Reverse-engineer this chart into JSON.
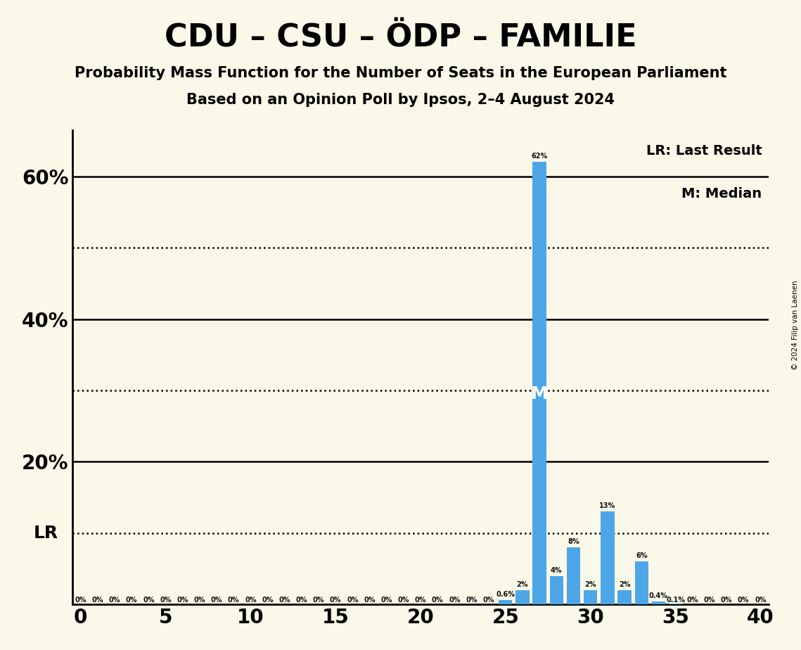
{
  "title": "CDU – CSU – ÖDP – FAMILIE",
  "subtitle1": "Probability Mass Function for the Number of Seats in the European Parliament",
  "subtitle2": "Based on an Opinion Poll by Ipsos, 2–4 August 2024",
  "copyright": "© 2024 Filip van Laenen",
  "background_color": "#faf8e8",
  "bar_color": "#4da6e8",
  "xlim": [
    -0.5,
    40.5
  ],
  "ylim": [
    0,
    0.665
  ],
  "xticks": [
    0,
    5,
    10,
    15,
    20,
    25,
    30,
    35,
    40
  ],
  "solid_hlines": [
    0.2,
    0.4,
    0.6
  ],
  "dotted_hlines": [
    0.1,
    0.3,
    0.5
  ],
  "last_result_seat": 27,
  "median_seat": 27,
  "lr_label": "LR",
  "median_label": "M",
  "pmf": {
    "0": 0.0,
    "1": 0.0,
    "2": 0.0,
    "3": 0.0,
    "4": 0.0,
    "5": 0.0,
    "6": 0.0,
    "7": 0.0,
    "8": 0.0,
    "9": 0.0,
    "10": 0.0,
    "11": 0.0,
    "12": 0.0,
    "13": 0.0,
    "14": 0.0,
    "15": 0.0,
    "16": 0.0,
    "17": 0.0,
    "18": 0.0,
    "19": 0.0,
    "20": 0.0,
    "21": 0.0,
    "22": 0.0,
    "23": 0.0,
    "24": 0.0,
    "25": 0.006,
    "26": 0.02,
    "27": 0.62,
    "28": 0.04,
    "29": 0.08,
    "30": 0.02,
    "31": 0.13,
    "32": 0.02,
    "33": 0.06,
    "34": 0.004,
    "35": 0.001,
    "36": 0.0,
    "37": 0.0,
    "38": 0.0,
    "39": 0.0,
    "40": 0.0
  },
  "bar_labels": {
    "0": "0%",
    "1": "0%",
    "2": "0%",
    "3": "0%",
    "4": "0%",
    "5": "0%",
    "6": "0%",
    "7": "0%",
    "8": "0%",
    "9": "0%",
    "10": "0%",
    "11": "0%",
    "12": "0%",
    "13": "0%",
    "14": "0%",
    "15": "0%",
    "16": "0%",
    "17": "0%",
    "18": "0%",
    "19": "0%",
    "20": "0%",
    "21": "0%",
    "22": "0%",
    "23": "0%",
    "24": "0%",
    "25": "0.6%",
    "26": "2%",
    "27": "62%",
    "28": "4%",
    "29": "8%",
    "30": "2%",
    "31": "13%",
    "32": "2%",
    "33": "6%",
    "34": "0.4%",
    "35": "0.1%",
    "36": "0%",
    "37": "0%",
    "38": "0%",
    "39": "0%",
    "40": "0%"
  },
  "legend_lr": "LR: Last Result",
  "legend_m": "M: Median",
  "ytick_positions": [
    0.2,
    0.4,
    0.6
  ],
  "ytick_labels": [
    "20%",
    "40%",
    "60%"
  ]
}
